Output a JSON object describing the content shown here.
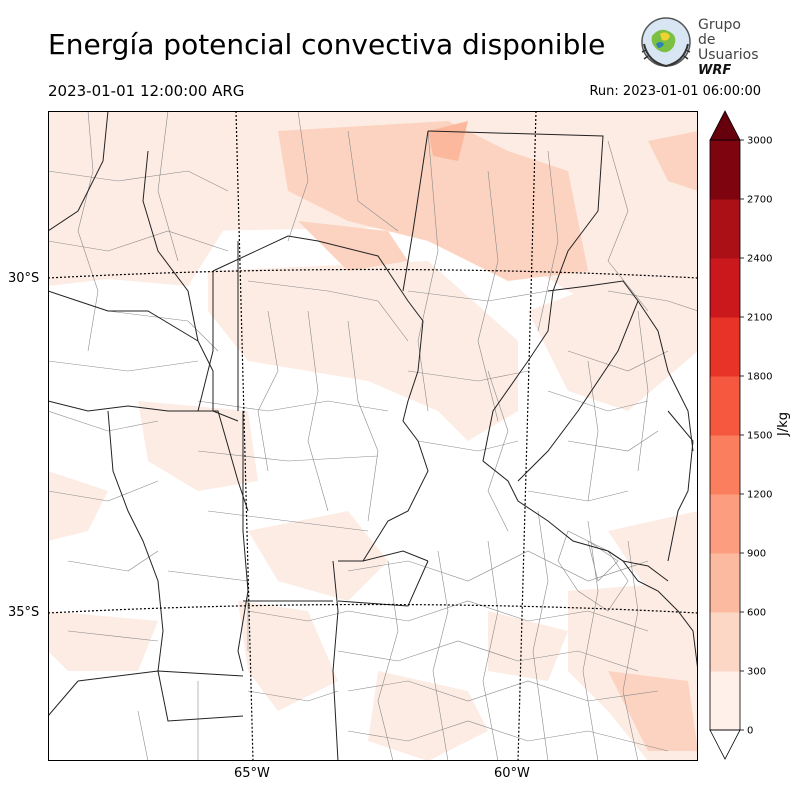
{
  "header": {
    "title": "Energía potencial convectiva disponible",
    "valid_time": "2023-01-01 12:00:00 ARG",
    "run_time": "Run: 2023-01-01 06:00:00"
  },
  "logo": {
    "line1": "Grupo de",
    "line2": "Usuarios",
    "line3": "WRF"
  },
  "map": {
    "lat_labels": [
      "30°S",
      "35°S"
    ],
    "lon_labels": [
      "65°W",
      "60°W"
    ]
  },
  "colorbar": {
    "units": "J/kg",
    "ticks": [
      "0",
      "300",
      "600",
      "900",
      "1200",
      "1500",
      "1800",
      "2100",
      "2400",
      "2700",
      "3000"
    ],
    "colors": [
      "#fff0ea",
      "#fdd7c6",
      "#fcbba0",
      "#fc9d7f",
      "#fb7e5e",
      "#f6573f",
      "#e83329",
      "#cb181d",
      "#ab1016",
      "#7e0510",
      "#67000d"
    ]
  }
}
